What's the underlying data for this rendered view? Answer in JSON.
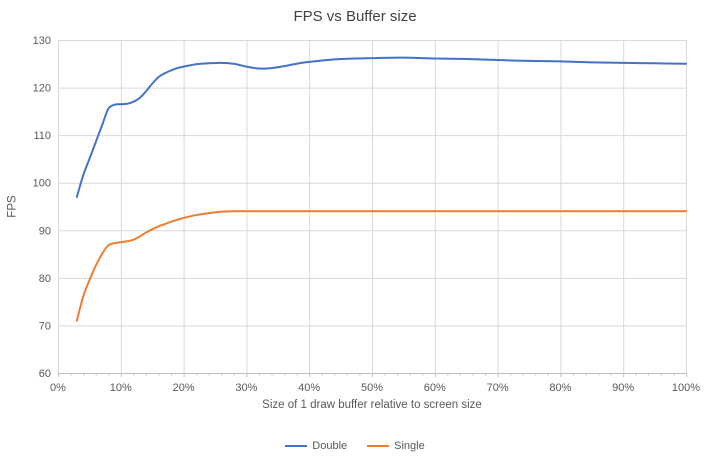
{
  "chart": {
    "title": "FPS vs Buffer size",
    "colors": {
      "series_double": "#4472C4",
      "series_single": "#ED7D31",
      "gridline": "#D9D9D9",
      "axis_line": "#BFBFBF",
      "axis_text": "#595959",
      "title_text": "#424242",
      "background": "#FFFFFF"
    },
    "legend": {
      "position": "bottom",
      "entries": [
        "Double",
        "Single"
      ]
    }
  },
  "chart_data": {
    "type": "line",
    "title": "FPS vs Buffer size",
    "xlabel": "Size of 1 draw buffer relative to screen size",
    "ylabel": "FPS",
    "xlim": [
      0,
      100
    ],
    "ylim": [
      60,
      130
    ],
    "grid": true,
    "smooth": true,
    "legend_position": "bottom",
    "yticks": [
      60,
      70,
      80,
      90,
      100,
      110,
      120,
      130
    ],
    "xtick_values": [
      0,
      10,
      20,
      30,
      40,
      50,
      60,
      70,
      80,
      90,
      100
    ],
    "xtick_labels": [
      "0%",
      "10%",
      "20%",
      "30%",
      "40%",
      "50%",
      "60%",
      "70%",
      "80%",
      "90%",
      "100%"
    ],
    "x_minor_tick_step": 2,
    "x": [
      3,
      4,
      5,
      6,
      7,
      8,
      9,
      10,
      11,
      12,
      13,
      14,
      15,
      16,
      17,
      18,
      19,
      20,
      22,
      24,
      26,
      28,
      30,
      32,
      34,
      36,
      38,
      40,
      45,
      50,
      55,
      60,
      65,
      70,
      75,
      80,
      85,
      90,
      95,
      100
    ],
    "series": [
      {
        "name": "Double",
        "color": "#4472C4",
        "values": [
          97,
          101.5,
          105,
          108.5,
          112,
          115.5,
          116.4,
          116.5,
          116.6,
          117,
          117.8,
          119.2,
          120.8,
          122.2,
          123,
          123.6,
          124.1,
          124.4,
          124.9,
          125.1,
          125.2,
          125,
          124.4,
          124,
          124.1,
          124.5,
          125,
          125.4,
          126,
          126.2,
          126.3,
          126.1,
          126,
          125.8,
          125.6,
          125.5,
          125.3,
          125.2,
          125.1,
          125
        ]
      },
      {
        "name": "Single",
        "color": "#ED7D31",
        "values": [
          71,
          76,
          79.5,
          82.5,
          85,
          86.8,
          87.3,
          87.5,
          87.7,
          88,
          88.7,
          89.5,
          90.2,
          90.8,
          91.3,
          91.8,
          92.2,
          92.6,
          93.2,
          93.6,
          93.9,
          94,
          94,
          94,
          94,
          94,
          94,
          94,
          94,
          94,
          94,
          94,
          94,
          94,
          94,
          94,
          94,
          94,
          94,
          94
        ]
      }
    ]
  }
}
